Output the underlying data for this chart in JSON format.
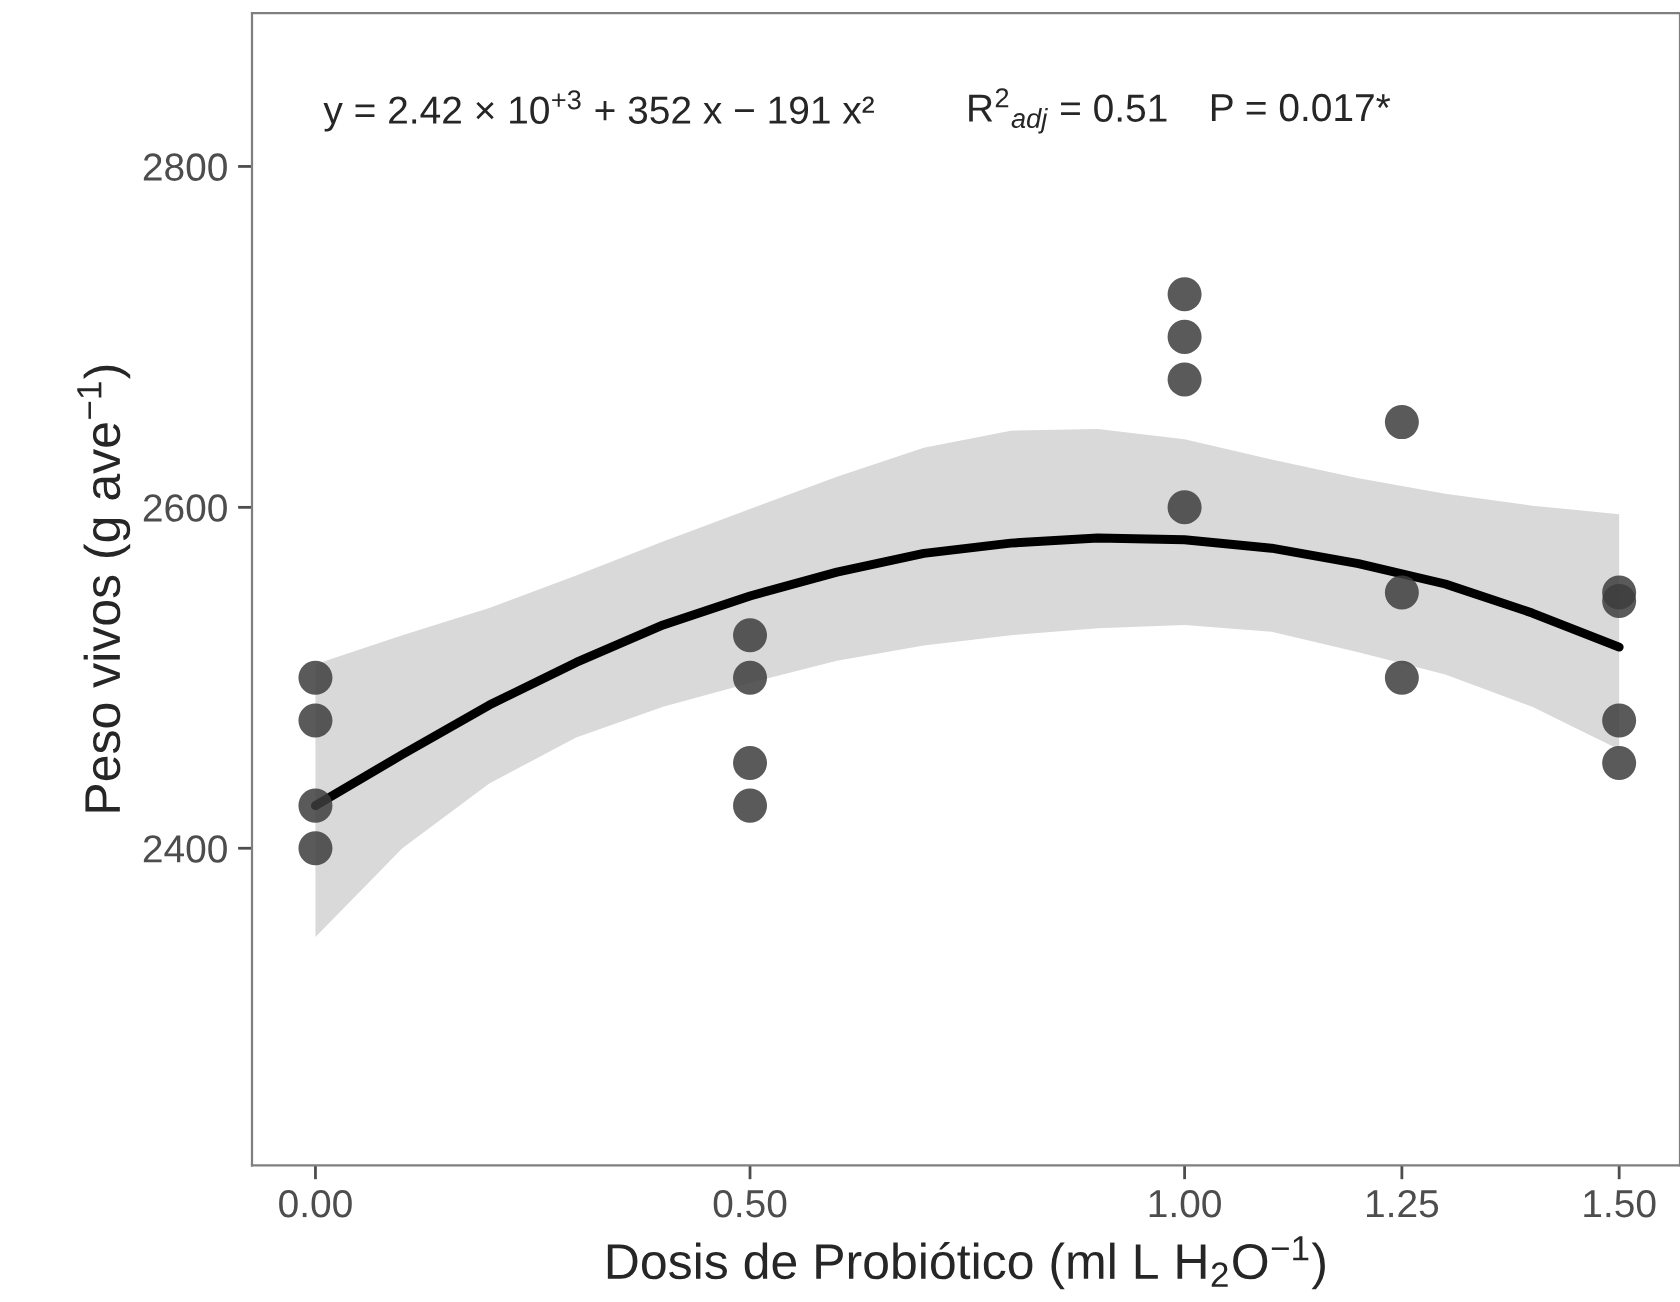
{
  "chart_data": {
    "type": "scatter",
    "xlabel": "Dosis de Probiótico (ml L H$_{2}$O$^{−1}$)",
    "ylabel": "Peso vivos (g ave$^{−1}$)",
    "series": [
      {
        "color": "#3d3d3d",
        "marker": "circle",
        "x": [
          0,
          0,
          0,
          0,
          0.5,
          0.5,
          0.5,
          0.5,
          1,
          1,
          1,
          1,
          1.25,
          1.25,
          1.25,
          1.5,
          1.5,
          1.5,
          1.5
        ],
        "values": [
          2500,
          2475,
          2425,
          2400,
          2525,
          2500,
          2450,
          2425,
          2725,
          2700,
          2675,
          2600,
          2650,
          2550,
          2500,
          2550,
          2545,
          2475,
          2450
        ]
      },
      {
        "type": "line",
        "color": "#000000",
        "marker": "none",
        "x": [
          0,
          0.1,
          0.2,
          0.3,
          0.4,
          0.5,
          0.6,
          0.7,
          0.8,
          0.9,
          1.0,
          1.1,
          1.2,
          1.3,
          1.4,
          1.5
        ],
        "values": [
          2425,
          2455,
          2484,
          2509,
          2531,
          2548,
          2562,
          2573,
          2579,
          2582,
          2581,
          2576,
          2567,
          2555,
          2538,
          2518
        ],
        "lower": [
          2348,
          2400,
          2438,
          2465,
          2483,
          2497,
          2510,
          2519,
          2525,
          2529,
          2531,
          2527,
          2515,
          2502,
          2483,
          2458
        ],
        "upper": [
          2508,
          2525,
          2541,
          2560,
          2580,
          2599,
          2618,
          2635,
          2645,
          2646,
          2640,
          2628,
          2617,
          2608,
          2601,
          2596
        ]
      }
    ],
    "xlim": [
      -0.073,
      1.57
    ],
    "ylim": [
      2214,
      2890
    ],
    "xticks": [
      {
        "value": 0,
        "label": "0.00"
      },
      {
        "value": 0.5,
        "label": "0.50"
      },
      {
        "value": 1,
        "label": "1.00"
      },
      {
        "value": 1.25,
        "label": "1.25"
      },
      {
        "value": 1.5,
        "label": "1.50"
      }
    ],
    "yticks": [
      2400,
      2600,
      2800
    ],
    "grid": false,
    "annotations": [
      "y = 2.42 × 10$^{+3}$ + 352 x − 191 x²",
      "R$^{2}$$_{adj}$ = 0.51",
      "P = 0.017*"
    ]
  }
}
